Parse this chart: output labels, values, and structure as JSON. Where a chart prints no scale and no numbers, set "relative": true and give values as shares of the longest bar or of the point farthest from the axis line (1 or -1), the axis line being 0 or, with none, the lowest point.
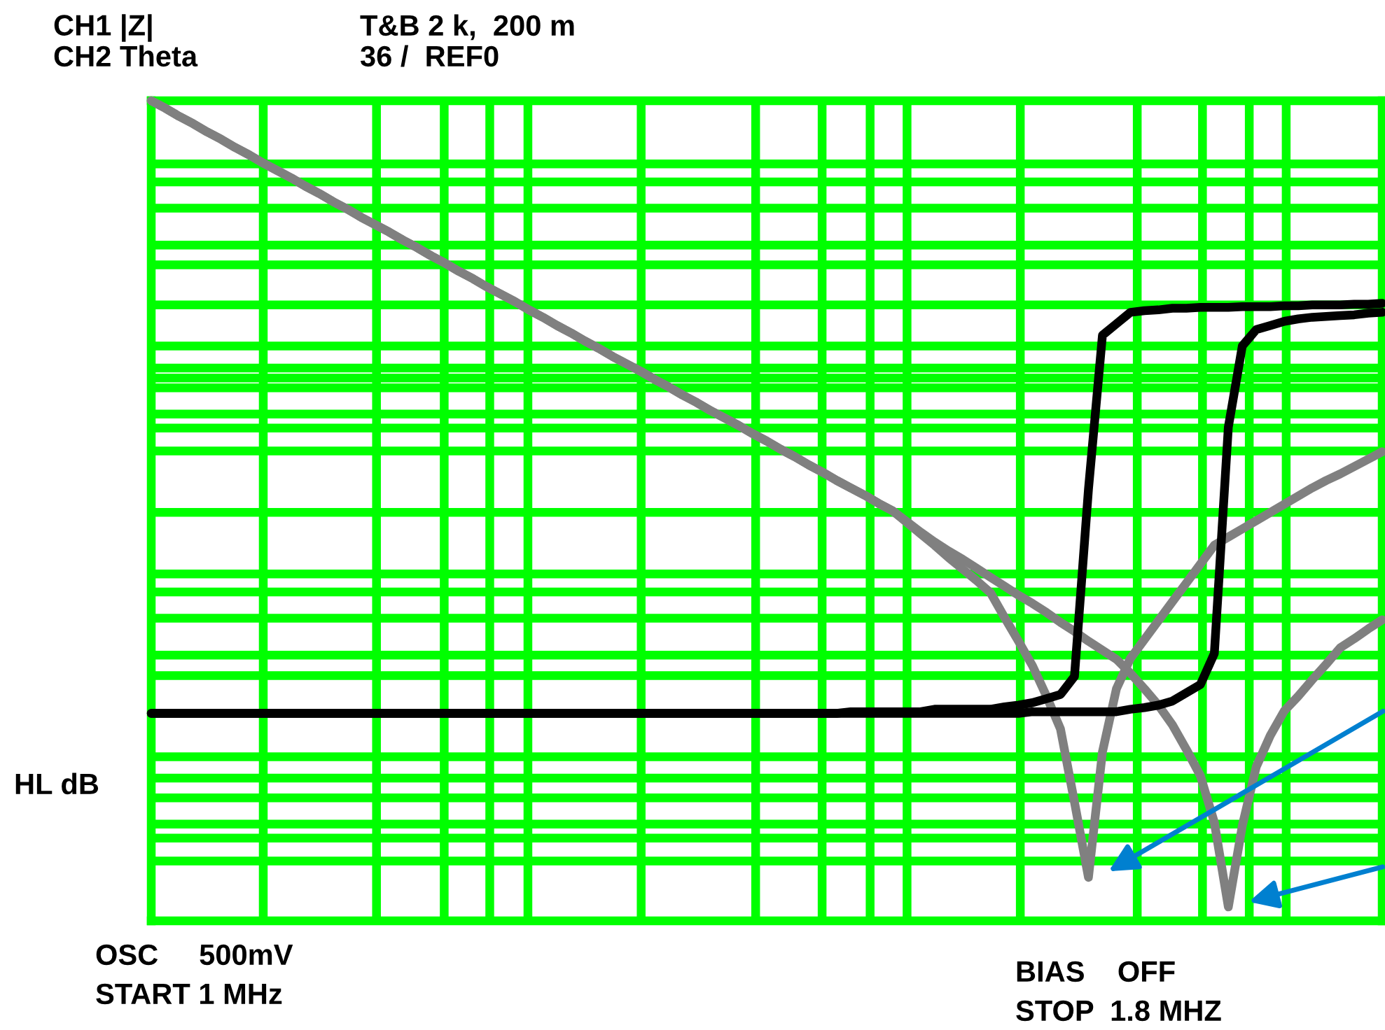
{
  "chart_data": {
    "type": "line",
    "relative": true,
    "grid": true,
    "marker": "none",
    "line_style": "solid",
    "annotations": [
      "CH1 |Z|",
      "CH2 Theta",
      "T&B 2 k,  200 m",
      "36 /  REF0",
      "HL dB",
      "OSC     500mV",
      "START 1 MHz",
      "BIAS    OFF",
      "STOP  1.8 MHZ"
    ],
    "categories": [
      null,
      null,
      null,
      null,
      null,
      null,
      null,
      null,
      null,
      null,
      null,
      null,
      null,
      null,
      null,
      null,
      null,
      null,
      null,
      null,
      null,
      null,
      null,
      null,
      null,
      null,
      null,
      null,
      null,
      null,
      null,
      null,
      null,
      null,
      null,
      null,
      null,
      null,
      null,
      null,
      null,
      null,
      null,
      null,
      null,
      null,
      null,
      null,
      null,
      null,
      null,
      null,
      null,
      null,
      null,
      null,
      null,
      null,
      null,
      null,
      null,
      null,
      null,
      null,
      null,
      null,
      null,
      null,
      null,
      null,
      null,
      null,
      null,
      null,
      null,
      null,
      null,
      null,
      null,
      null,
      null,
      null,
      null,
      null,
      null,
      null,
      null,
      null,
      null
    ],
    "series": [
      {
        "color": "#808080",
        "values": [
          1.0,
          0.991,
          0.981,
          0.972,
          0.962,
          0.953,
          0.943,
          0.934,
          0.924,
          0.915,
          0.906,
          0.896,
          0.887,
          0.877,
          0.868,
          0.858,
          0.849,
          0.84,
          0.83,
          0.821,
          0.811,
          0.802,
          0.792,
          0.783,
          0.773,
          0.764,
          0.755,
          0.745,
          0.736,
          0.726,
          0.717,
          0.707,
          0.698,
          0.688,
          0.679,
          0.67,
          0.66,
          0.651,
          0.641,
          0.632,
          0.622,
          0.613,
          0.604,
          0.594,
          0.585,
          0.575,
          0.566,
          0.556,
          0.547,
          0.537,
          0.528,
          0.519,
          0.509,
          0.5,
          0.486,
          0.472,
          0.458,
          0.443,
          0.429,
          0.415,
          0.4,
          0.37,
          0.341,
          0.311,
          0.274,
          0.234,
          0.145,
          0.053,
          0.206,
          0.283,
          0.32,
          0.343,
          0.366,
          0.389,
          0.412,
          0.435,
          0.458,
          0.468,
          0.478,
          0.488,
          0.498,
          0.508,
          0.518,
          0.528,
          0.537,
          0.545,
          0.554,
          0.563,
          0.572
        ]
      },
      {
        "color": "#808080",
        "values": [
          1.0,
          0.991,
          0.981,
          0.972,
          0.962,
          0.953,
          0.943,
          0.934,
          0.924,
          0.915,
          0.906,
          0.896,
          0.887,
          0.877,
          0.868,
          0.858,
          0.849,
          0.84,
          0.83,
          0.821,
          0.811,
          0.802,
          0.792,
          0.783,
          0.773,
          0.764,
          0.755,
          0.745,
          0.736,
          0.726,
          0.717,
          0.707,
          0.698,
          0.688,
          0.679,
          0.67,
          0.66,
          0.651,
          0.641,
          0.632,
          0.622,
          0.613,
          0.604,
          0.594,
          0.585,
          0.575,
          0.566,
          0.556,
          0.547,
          0.537,
          0.528,
          0.519,
          0.509,
          0.5,
          0.487,
          0.474,
          0.462,
          0.451,
          0.441,
          0.43,
          0.419,
          0.408,
          0.397,
          0.387,
          0.376,
          0.364,
          0.353,
          0.341,
          0.33,
          0.319,
          0.302,
          0.283,
          0.263,
          0.239,
          0.209,
          0.177,
          0.12,
          0.017,
          0.116,
          0.188,
          0.226,
          0.256,
          0.274,
          0.294,
          0.313,
          0.333,
          0.344,
          0.356,
          0.367
        ]
      },
      {
        "color": "#000000",
        "values": [
          0.253,
          0.253,
          0.253,
          0.253,
          0.253,
          0.253,
          0.253,
          0.253,
          0.253,
          0.253,
          0.253,
          0.253,
          0.253,
          0.253,
          0.253,
          0.253,
          0.253,
          0.253,
          0.253,
          0.253,
          0.253,
          0.253,
          0.253,
          0.253,
          0.253,
          0.253,
          0.253,
          0.253,
          0.253,
          0.253,
          0.253,
          0.253,
          0.253,
          0.253,
          0.253,
          0.253,
          0.253,
          0.253,
          0.253,
          0.253,
          0.253,
          0.253,
          0.253,
          0.253,
          0.253,
          0.253,
          0.253,
          0.253,
          0.253,
          0.253,
          0.255,
          0.255,
          0.255,
          0.255,
          0.255,
          0.255,
          0.258,
          0.258,
          0.258,
          0.258,
          0.258,
          0.261,
          0.263,
          0.266,
          0.271,
          0.276,
          0.298,
          0.526,
          0.714,
          0.728,
          0.742,
          0.744,
          0.745,
          0.747,
          0.747,
          0.748,
          0.748,
          0.748,
          0.749,
          0.749,
          0.749,
          0.75,
          0.75,
          0.751,
          0.751,
          0.751,
          0.752,
          0.752,
          0.753
        ]
      },
      {
        "color": "#000000",
        "values": [
          0.253,
          0.253,
          0.253,
          0.253,
          0.253,
          0.253,
          0.253,
          0.253,
          0.253,
          0.253,
          0.253,
          0.253,
          0.253,
          0.253,
          0.253,
          0.253,
          0.253,
          0.253,
          0.253,
          0.253,
          0.253,
          0.253,
          0.253,
          0.253,
          0.253,
          0.253,
          0.253,
          0.253,
          0.253,
          0.253,
          0.253,
          0.253,
          0.253,
          0.253,
          0.253,
          0.253,
          0.253,
          0.253,
          0.253,
          0.253,
          0.253,
          0.253,
          0.253,
          0.253,
          0.253,
          0.253,
          0.253,
          0.253,
          0.253,
          0.253,
          0.253,
          0.253,
          0.253,
          0.253,
          0.253,
          0.253,
          0.253,
          0.253,
          0.253,
          0.253,
          0.253,
          0.253,
          0.253,
          0.255,
          0.255,
          0.255,
          0.255,
          0.255,
          0.255,
          0.255,
          0.258,
          0.26,
          0.263,
          0.268,
          0.278,
          0.288,
          0.326,
          0.602,
          0.701,
          0.721,
          0.726,
          0.731,
          0.734,
          0.736,
          0.737,
          0.738,
          0.739,
          0.741,
          0.742
        ]
      }
    ]
  }
}
